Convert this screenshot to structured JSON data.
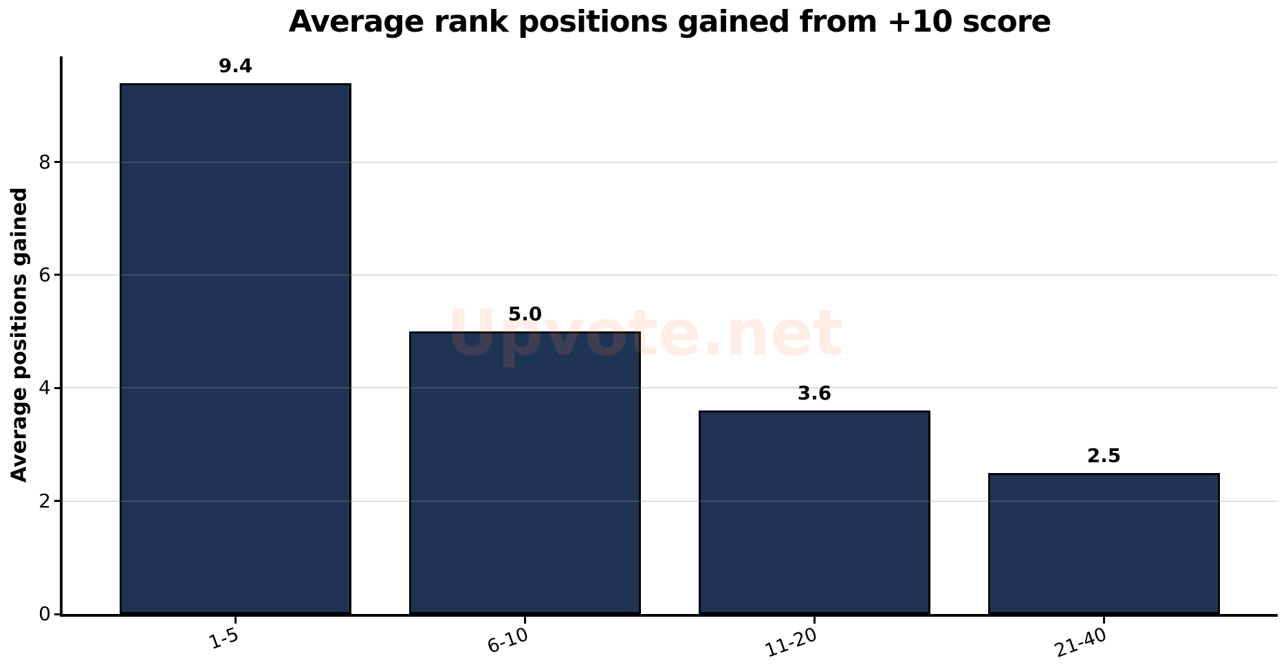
{
  "chart_data": {
    "type": "bar",
    "title": "Average rank positions gained from +10 score",
    "categories": [
      "1-5",
      "6-10",
      "11-20",
      "21-40"
    ],
    "values": [
      9.4,
      5.0,
      3.6,
      2.5
    ],
    "value_labels": [
      "9.4",
      "5.0",
      "3.6",
      "2.5"
    ],
    "xlabel": "",
    "ylabel": "Average positions gained",
    "yticks": [
      0,
      2,
      4,
      6,
      8
    ],
    "ytick_labels": [
      "0",
      "2",
      "4",
      "6",
      "8"
    ],
    "ylim": [
      0,
      9.87
    ],
    "grid": "horizontal",
    "legend_position": "none",
    "colors": {
      "bar_fill": "#1f3455",
      "bar_edge": "#000000",
      "gridline": "rgba(140,140,140,0.30)",
      "axis": "#000000",
      "text": "#000000",
      "background": "#ffffff"
    }
  },
  "watermark": {
    "text": "Upvote.net",
    "color": "rgba(255,130,80,0.14)"
  }
}
